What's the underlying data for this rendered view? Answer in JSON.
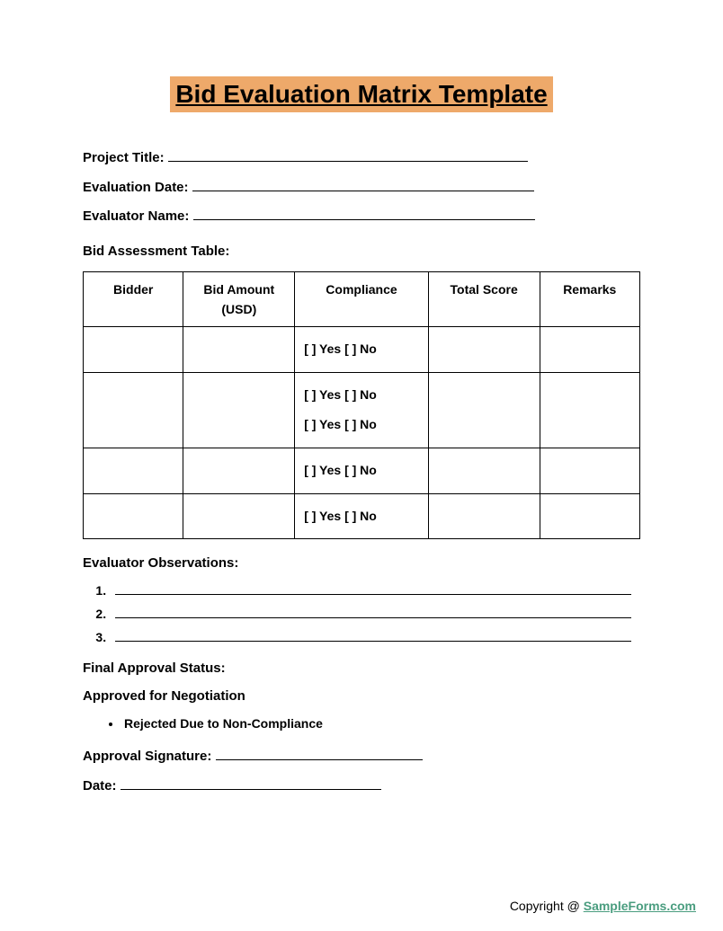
{
  "title": "Bid Evaluation Matrix Template",
  "title_bg": "#eea96a",
  "fields": {
    "project_title_label": "Project Title:",
    "project_title_line_width": 400,
    "evaluation_date_label": "Evaluation Date:",
    "evaluation_date_line_width": 380,
    "evaluator_name_label": "Evaluator Name:",
    "evaluator_name_line_width": 380
  },
  "table": {
    "heading": "Bid Assessment Table:",
    "columns": [
      "Bidder",
      "Bid Amount (USD)",
      "Compliance",
      "Total Score",
      "Remarks"
    ],
    "compliance_text": "[ ] Yes [ ] No",
    "rows": [
      {
        "bidder": "",
        "amount": "",
        "compliance_lines": 1,
        "score": "",
        "remarks": ""
      },
      {
        "bidder": "",
        "amount": "",
        "compliance_lines": 2,
        "score": "",
        "remarks": ""
      },
      {
        "bidder": "",
        "amount": "",
        "compliance_lines": 1,
        "score": "",
        "remarks": ""
      },
      {
        "bidder": "",
        "amount": "",
        "compliance_lines": 1,
        "score": "",
        "remarks": ""
      }
    ]
  },
  "observations": {
    "heading": "Evaluator Observations:",
    "count": 3
  },
  "approval": {
    "heading": "Final Approval Status:",
    "approved_label": "Approved for Negotiation",
    "rejected_label": "Rejected Due to Non-Compliance",
    "signature_label": "Approval Signature:",
    "signature_line_width": 230,
    "date_label": "Date:",
    "date_line_width": 290
  },
  "footer": {
    "copyright": "Copyright @ ",
    "link_text": "SampleForms.com",
    "link_color": "#4a9d7f"
  }
}
